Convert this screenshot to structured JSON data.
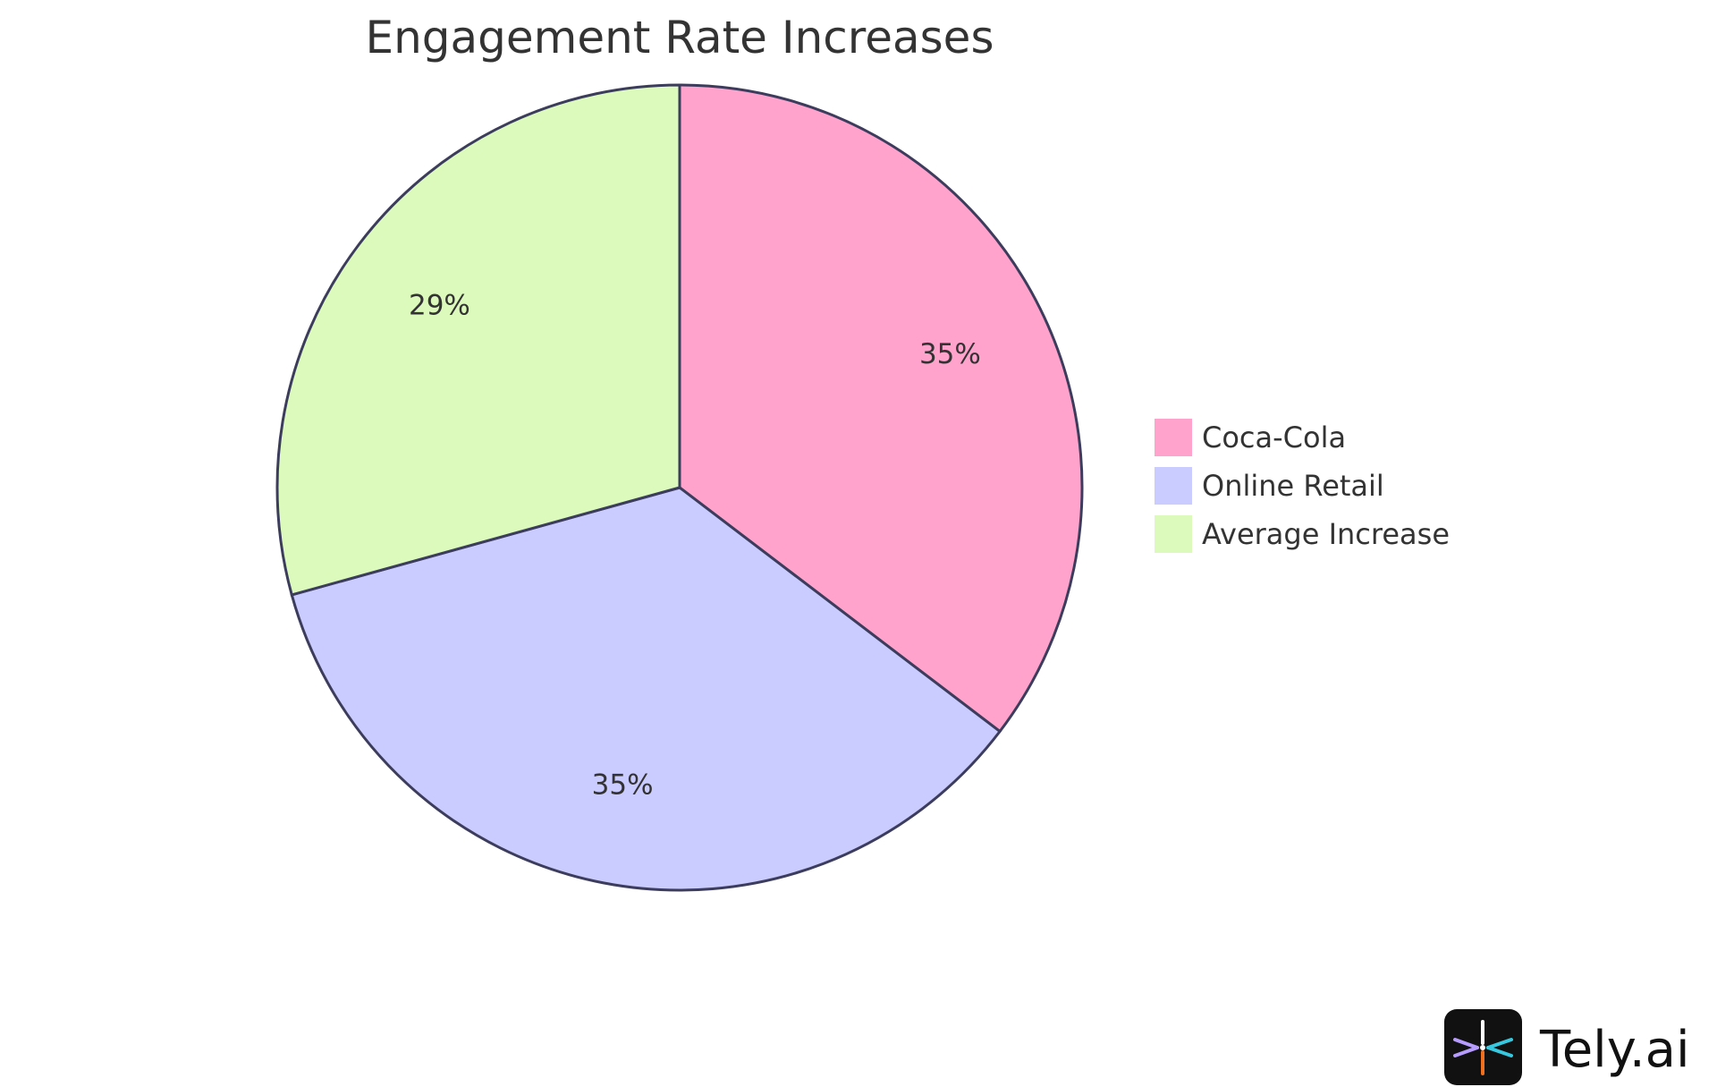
{
  "chart_data": {
    "type": "pie",
    "title": "Engagement Rate Increases",
    "categories": [
      "Coca-Cola",
      "Online Retail",
      "Average Increase"
    ],
    "values": [
      35,
      35,
      29
    ],
    "labels": [
      "35%",
      "35%",
      "29%"
    ],
    "colors": [
      "#ffa3cd",
      "#cacbff",
      "#dbfabb"
    ],
    "stroke_color": "#3c3c5c",
    "legend_position": "right"
  },
  "brand": {
    "name": "Tely.ai",
    "icon": "tely-logo-icon"
  }
}
